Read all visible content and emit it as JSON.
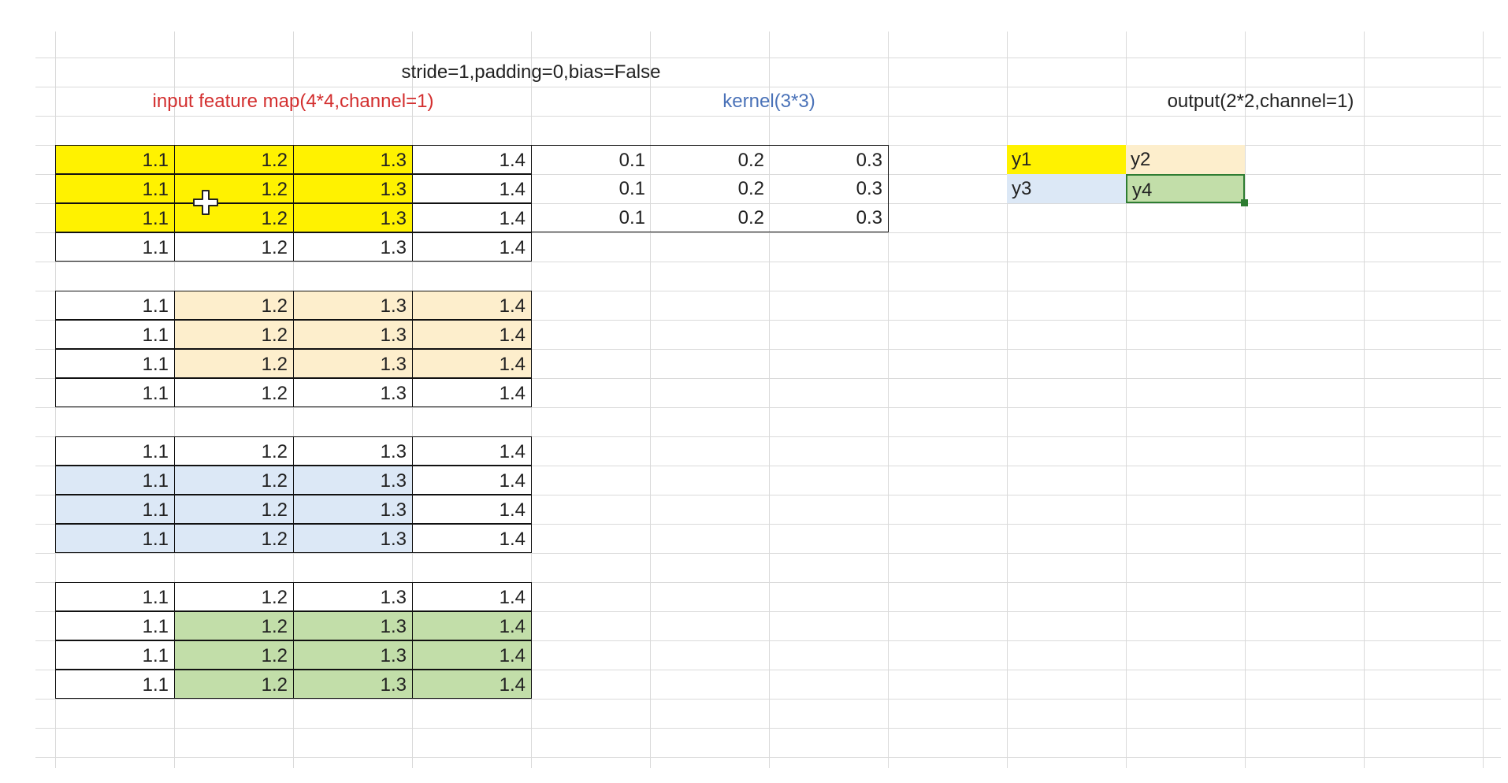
{
  "title_row": {
    "params": "stride=1,padding=0,bias=False",
    "input_label": "input feature map(4*4,channel=1)",
    "kernel_label": "kernel(3*3)",
    "output_label": "output(2*2,channel=1)"
  },
  "colors": {
    "input_label": "#d32f2f",
    "kernel_label": "#4a72b8",
    "y1": "#fff200",
    "y2": "#fdeecc",
    "y3": "#dce8f6",
    "y4": "#c2dea9",
    "gridline": "#dadada"
  },
  "input_blocks": [
    {
      "highlight": "y1",
      "rows": [
        [
          "1.1",
          "1.2",
          "1.3",
          "1.4"
        ],
        [
          "1.1",
          "1.2",
          "1.3",
          "1.4"
        ],
        [
          "1.1",
          "1.2",
          "1.3",
          "1.4"
        ],
        [
          "1.1",
          "1.2",
          "1.3",
          "1.4"
        ]
      ]
    },
    {
      "highlight": "y2",
      "rows": [
        [
          "1.1",
          "1.2",
          "1.3",
          "1.4"
        ],
        [
          "1.1",
          "1.2",
          "1.3",
          "1.4"
        ],
        [
          "1.1",
          "1.2",
          "1.3",
          "1.4"
        ],
        [
          "1.1",
          "1.2",
          "1.3",
          "1.4"
        ]
      ]
    },
    {
      "highlight": "y3",
      "rows": [
        [
          "1.1",
          "1.2",
          "1.3",
          "1.4"
        ],
        [
          "1.1",
          "1.2",
          "1.3",
          "1.4"
        ],
        [
          "1.1",
          "1.2",
          "1.3",
          "1.4"
        ],
        [
          "1.1",
          "1.2",
          "1.3",
          "1.4"
        ]
      ]
    },
    {
      "highlight": "y4",
      "rows": [
        [
          "1.1",
          "1.2",
          "1.3",
          "1.4"
        ],
        [
          "1.1",
          "1.2",
          "1.3",
          "1.4"
        ],
        [
          "1.1",
          "1.2",
          "1.3",
          "1.4"
        ],
        [
          "1.1",
          "1.2",
          "1.3",
          "1.4"
        ]
      ]
    }
  ],
  "kernel": [
    [
      "0.1",
      "0.2",
      "0.3"
    ],
    [
      "0.1",
      "0.2",
      "0.3"
    ],
    [
      "0.1",
      "0.2",
      "0.3"
    ]
  ],
  "output": [
    [
      "y1",
      "y2"
    ],
    [
      "y3",
      "y4"
    ]
  ],
  "selected_cell": "y4",
  "cursor_icon": "move-cursor-icon"
}
